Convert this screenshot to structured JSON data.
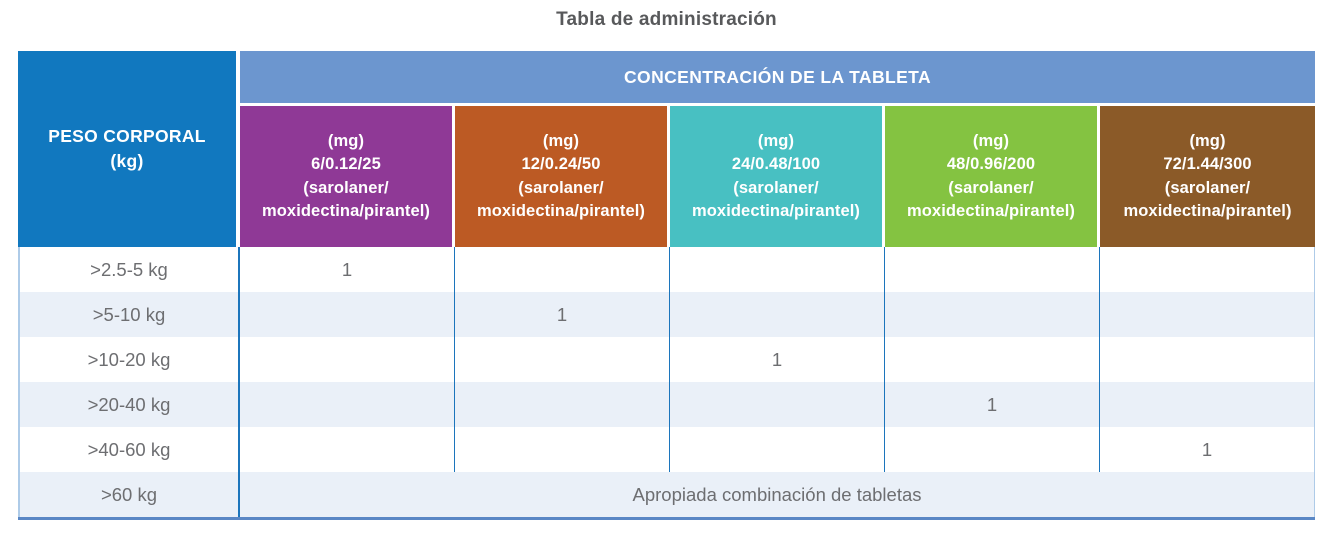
{
  "title": "Tabla de administración",
  "table": {
    "weight_header": "PESO CORPORAL\n(kg)",
    "concentration_header": "CONCENTRACIÓN DE LA TABLETA",
    "columns": [
      {
        "strength": "(mg)\n6/0.12/25\n(sarolaner/\nmoxidectina/pirantel)",
        "color": "#8F3996"
      },
      {
        "strength": "(mg)\n12/0.24/50\n(sarolaner/\nmoxidectina/pirantel)",
        "color": "#BC5A24"
      },
      {
        "strength": "(mg)\n24/0.48/100\n(sarolaner/\nmoxidectina/pirantel)",
        "color": "#48C0C2"
      },
      {
        "strength": "(mg)\n48/0.96/200\n(sarolaner/\nmoxidectina/pirantel)",
        "color": "#84C341"
      },
      {
        "strength": "(mg)\n72/1.44/300\n(sarolaner/\nmoxidectina/pirantel)",
        "color": "#8B5A28"
      }
    ],
    "rows": [
      {
        "weight": ">2.5-5 kg",
        "cells": [
          "1",
          "",
          "",
          "",
          ""
        ]
      },
      {
        "weight": ">5-10 kg",
        "cells": [
          "",
          "1",
          "",
          "",
          ""
        ]
      },
      {
        "weight": ">10-20 kg",
        "cells": [
          "",
          "",
          "1",
          "",
          ""
        ]
      },
      {
        "weight": ">20-40 kg",
        "cells": [
          "",
          "",
          "",
          "1",
          ""
        ]
      },
      {
        "weight": ">40-60 kg",
        "cells": [
          "",
          "",
          "",
          "",
          "1"
        ]
      },
      {
        "weight": ">60 kg",
        "span_text": "Apropiada combinación de tabletas"
      }
    ],
    "colors": {
      "weight_header_bg": "#1178BF",
      "concentration_header_bg": "#6C96CF",
      "row_alt_bg": "#EAF0F8",
      "body_text": "#6D6E71",
      "column_separator": "#1C75BC",
      "outer_border": "#AECBE8",
      "bottom_border": "#5A87C5",
      "title_text": "#58595B"
    }
  }
}
